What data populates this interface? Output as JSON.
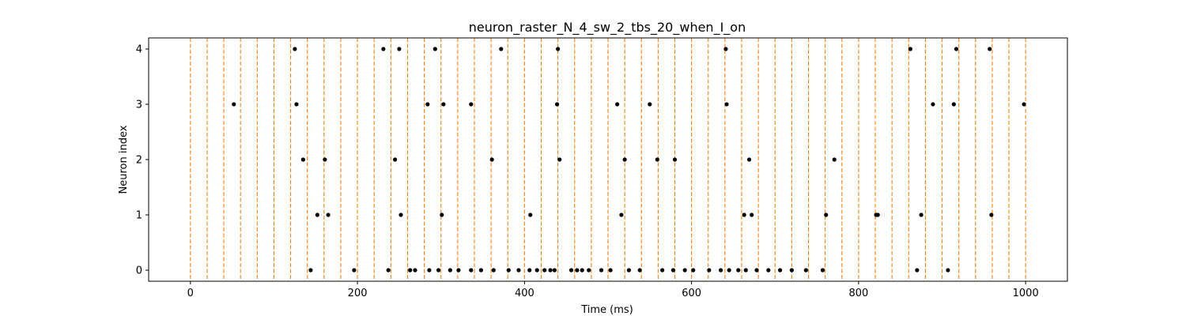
{
  "chart_data": {
    "type": "scatter",
    "title": "neuron_raster_N_4_sw_2_tbs_20_when_I_on",
    "xlabel": "Time (ms)",
    "ylabel": "Neuron index",
    "xlim": [
      -50,
      1050
    ],
    "ylim": [
      -0.2,
      4.2
    ],
    "xticks": [
      0,
      200,
      400,
      600,
      800,
      1000
    ],
    "yticks": [
      0,
      1,
      2,
      3,
      4
    ],
    "grid": false,
    "legend": "none",
    "marker_color": "#000000",
    "vline_color": "#ff7f0e",
    "vlines": [
      0,
      20,
      40,
      60,
      80,
      100,
      120,
      140,
      160,
      180,
      200,
      220,
      240,
      260,
      280,
      300,
      320,
      340,
      360,
      380,
      400,
      420,
      440,
      460,
      480,
      500,
      520,
      540,
      560,
      580,
      600,
      620,
      640,
      660,
      680,
      700,
      720,
      740,
      760,
      780,
      800,
      820,
      840,
      860,
      880,
      900,
      920,
      940,
      960,
      980,
      1000
    ],
    "series": [
      {
        "neuron": 4,
        "x": [
          125,
          231,
          250,
          293,
          372,
          440,
          641,
          862,
          917,
          957
        ]
      },
      {
        "neuron": 3,
        "x": [
          52,
          127,
          284,
          303,
          336,
          439,
          511,
          550,
          642,
          889,
          914,
          998
        ]
      },
      {
        "neuron": 2,
        "x": [
          135,
          161,
          245,
          361,
          442,
          520,
          559,
          580,
          669,
          771
        ]
      },
      {
        "neuron": 1,
        "x": [
          152,
          165,
          252,
          301,
          407,
          516,
          663,
          672,
          761,
          821,
          823,
          875,
          959
        ]
      },
      {
        "neuron": 0,
        "x": [
          144,
          196,
          237,
          263,
          269,
          286,
          297,
          311,
          321,
          336,
          348,
          363,
          381,
          393,
          406,
          415,
          424,
          431,
          436,
          456,
          463,
          469,
          477,
          492,
          503,
          525,
          538,
          565,
          578,
          592,
          602,
          621,
          635,
          645,
          656,
          665,
          678,
          692,
          706,
          720,
          737,
          757,
          870,
          907
        ]
      }
    ]
  }
}
